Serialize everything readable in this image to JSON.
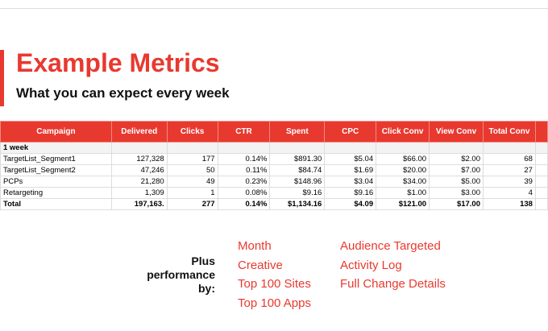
{
  "header": {
    "title": "Example Metrics",
    "subtitle": "What you can expect every week"
  },
  "table": {
    "columns": [
      "Campaign",
      "Delivered",
      "Clicks",
      "CTR",
      "Spent",
      "CPC",
      "Click Conv",
      "View Conv",
      "Total Conv"
    ],
    "group_label": "1 week",
    "rows": [
      [
        "TargetList_Segment1",
        "127,328",
        "177",
        "0.14%",
        "$891.30",
        "$5.04",
        "$66.00",
        "$2.00",
        "68"
      ],
      [
        "TargetList_Segment2",
        "47,246",
        "50",
        "0.11%",
        "$84.74",
        "$1.69",
        "$20.00",
        "$7.00",
        "27"
      ],
      [
        "PCPs",
        "21,280",
        "49",
        "0.23%",
        "$148.96",
        "$3.04",
        "$34.00",
        "$5.00",
        "39"
      ],
      [
        "Retargeting",
        "1,309",
        "1",
        "0.08%",
        "$9.16",
        "$9.16",
        "$1.00",
        "$3.00",
        "4"
      ]
    ],
    "total": [
      "Total",
      "197,163.",
      "277",
      "0.14%",
      "$1,134.16",
      "$4.09",
      "$121.00",
      "$17.00",
      "138"
    ]
  },
  "footer": {
    "lead": "Plus performance by:",
    "items_left": [
      "Month",
      "Creative",
      "Top 100 Sites",
      "Top 100 Apps"
    ],
    "items_right": [
      "Audience Targeted",
      "Activity Log",
      "Full Change Details"
    ]
  }
}
